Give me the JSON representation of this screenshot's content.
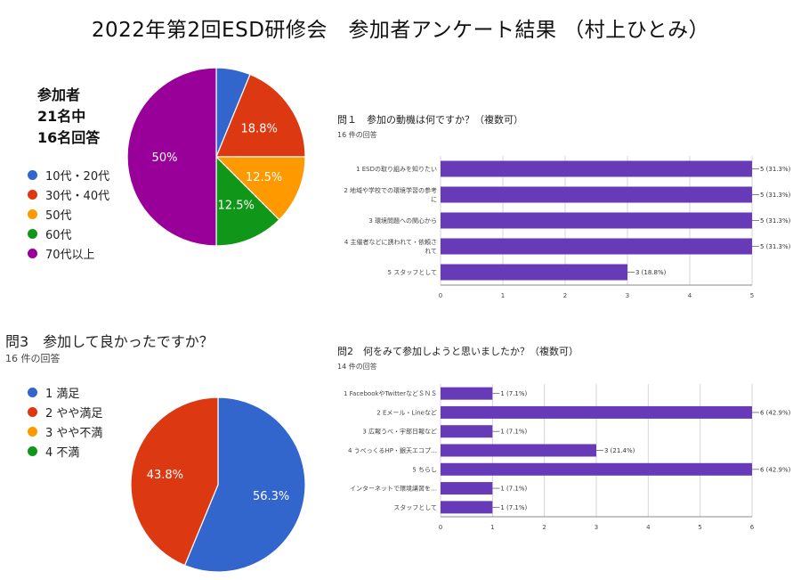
{
  "title": "2022年第2回ESD研修会　参加者アンケート結果 （村上ひとみ）",
  "participants": {
    "line1": "参加者",
    "line2": "21名中",
    "line3": "16名回答"
  },
  "chart_data": [
    {
      "id": "age",
      "type": "pie",
      "title": "",
      "legend_position": "left",
      "labels": [
        "10代・20代",
        "30代・40代",
        "50代",
        "60代",
        "70代以上"
      ],
      "values": [
        6.2,
        18.8,
        12.5,
        12.5,
        50.0
      ],
      "value_labels": [
        "",
        "18.8%",
        "12.5%",
        "12.5%",
        "50%"
      ],
      "colors": [
        "#3366cc",
        "#dc3912",
        "#ff9900",
        "#109618",
        "#990099"
      ]
    },
    {
      "id": "q1",
      "type": "bar",
      "orientation": "horizontal",
      "title": "問１　参加の動機は何ですか？（複数可）",
      "subtitle": "16 件の回答",
      "categories": [
        "1 ESDの取り組みを知りたい",
        "2 地域や学校での環境学習の参考に",
        "3 環境問題への関心から",
        "4 主催者などに誘われて・依頼されて",
        "5 スタッフとして"
      ],
      "category_lines": [
        [
          "1 ESDの取り組みを知りたい"
        ],
        [
          "2 地域や学校での環境学習の参考",
          "に"
        ],
        [
          "3 環境問題への関心から"
        ],
        [
          "4 主催者などに誘われて・依頼さ",
          "れて"
        ],
        [
          "5 スタッフとして"
        ]
      ],
      "values": [
        5,
        5,
        5,
        5,
        3
      ],
      "value_labels": [
        "5 (31.3%)",
        "5 (31.3%)",
        "5 (31.3%)",
        "5 (31.3%)",
        "3 (18.8%)"
      ],
      "xlim": [
        0,
        5
      ],
      "xticks": [
        0,
        1,
        2,
        3,
        4,
        5
      ],
      "color": "#673ab7"
    },
    {
      "id": "q3",
      "type": "pie",
      "title": "問3　参加して良かったですか？",
      "subtitle": "16 件の回答",
      "legend_position": "left",
      "labels": [
        "1 満足",
        "2 やや満足",
        "3 やや不満",
        "4 不満"
      ],
      "values": [
        56.3,
        43.8,
        0,
        0
      ],
      "value_labels": [
        "56.3%",
        "43.8%",
        "",
        ""
      ],
      "colors": [
        "#3366cc",
        "#dc3912",
        "#ff9900",
        "#109618"
      ]
    },
    {
      "id": "q2",
      "type": "bar",
      "orientation": "horizontal",
      "title": "問2　何をみて参加しようと思いましたか？（複数可）",
      "subtitle": "14 件の回答",
      "categories": [
        "1 FacebookやTwitterなどＳＮＳ",
        "2 Eメール・Lineなど",
        "3 広報うべ・宇部日報など",
        "4 うべっくるHP・銀天エコプ…",
        "5 ちらし",
        "インターネットで環境講習を…",
        "スタッフとして"
      ],
      "values": [
        1,
        6,
        1,
        3,
        6,
        1,
        1
      ],
      "value_labels": [
        "1 (7.1%)",
        "6 (42.9%)",
        "1 (7.1%)",
        "3 (21.4%)",
        "6 (42.9%)",
        "1 (7.1%)",
        "1 (7.1%)"
      ],
      "xlim": [
        0,
        6
      ],
      "xticks": [
        0,
        1,
        2,
        3,
        4,
        5,
        6
      ],
      "color": "#673ab7"
    }
  ]
}
